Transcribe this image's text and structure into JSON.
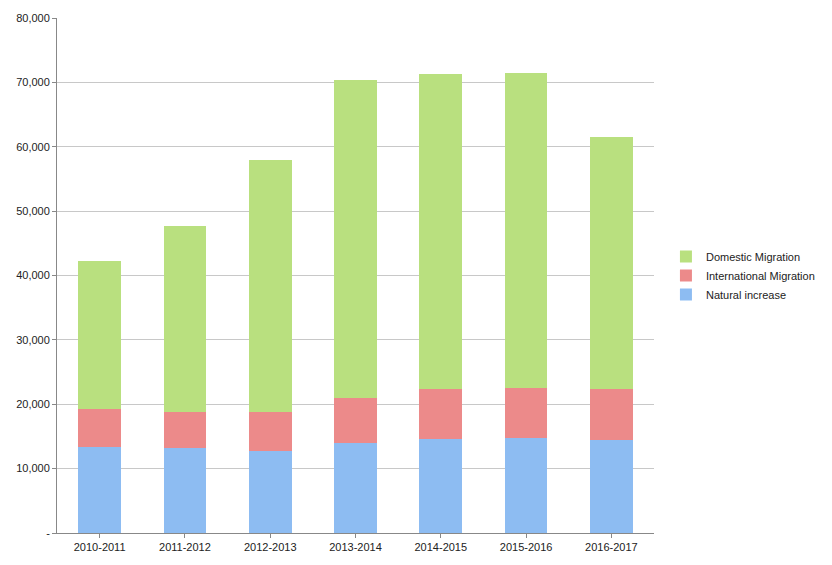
{
  "chart_data": {
    "type": "bar",
    "stacked": true,
    "categories": [
      "2010-2011",
      "2011-2012",
      "2012-2013",
      "2013-2014",
      "2014-2015",
      "2015-2016",
      "2016-2017"
    ],
    "series": [
      {
        "name": "Natural increase",
        "color": "#8dbcf2",
        "values": [
          13300,
          13200,
          12800,
          14000,
          14600,
          14700,
          14400
        ]
      },
      {
        "name": "International Migration",
        "color": "#ec8a8a",
        "values": [
          5900,
          5600,
          6000,
          7000,
          7800,
          7900,
          8000
        ]
      },
      {
        "name": "Domestic Migration",
        "color": "#b9e07f",
        "values": [
          23000,
          28900,
          39100,
          49400,
          48900,
          48800,
          39100
        ]
      }
    ],
    "ylim": [
      0,
      80000
    ],
    "yticks": [
      {
        "value": 0,
        "label": "-"
      },
      {
        "value": 10000,
        "label": "10,000"
      },
      {
        "value": 20000,
        "label": "20,000"
      },
      {
        "value": 30000,
        "label": "30,000"
      },
      {
        "value": 40000,
        "label": "40,000"
      },
      {
        "value": 50000,
        "label": "50,000"
      },
      {
        "value": 60000,
        "label": "60,000"
      },
      {
        "value": 70000,
        "label": "70,000"
      },
      {
        "value": 80000,
        "label": "80,000"
      }
    ],
    "grid": true,
    "legend": "right"
  }
}
